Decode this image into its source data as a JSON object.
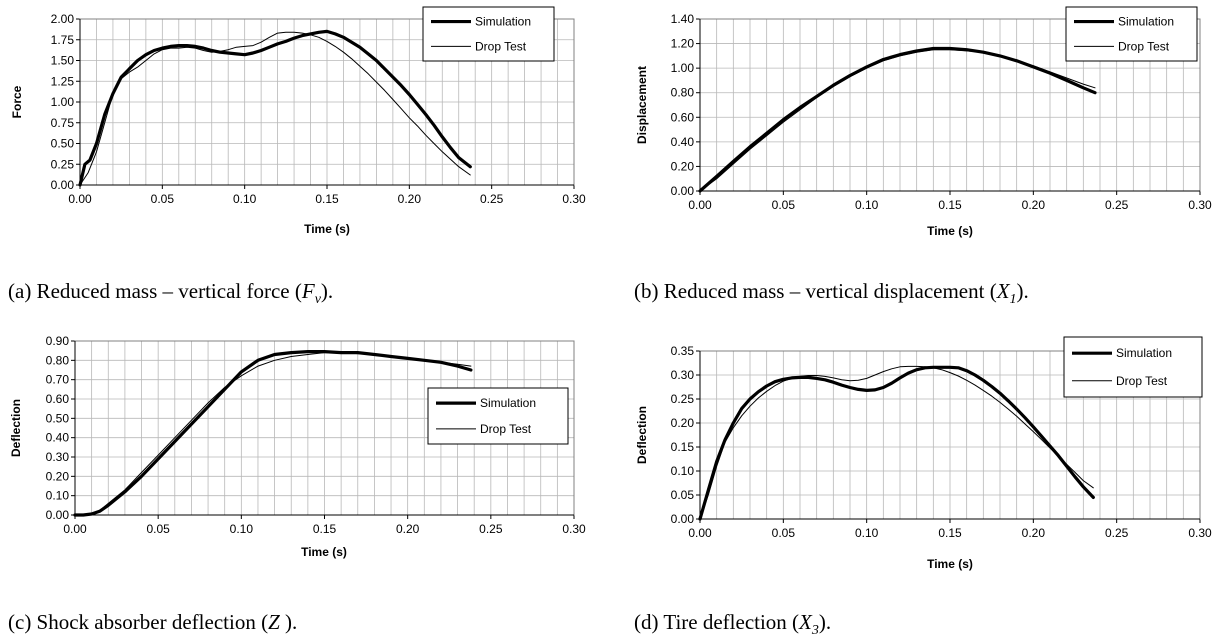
{
  "chart_data": [
    {
      "type": "line",
      "caption": {
        "prefix": "(a) Reduced mass – vertical force (",
        "symbol": "F",
        "sub": "v",
        "suffix": ")."
      },
      "xlabel": "Time (s)",
      "ylabel": "Force",
      "xlim": [
        0,
        0.3
      ],
      "ylim": [
        0,
        2.0
      ],
      "ystep": 0.25,
      "ydecimals": 2,
      "xticks": [
        "0.00",
        "0.05",
        "0.10",
        "0.15",
        "0.20",
        "0.25",
        "0.30"
      ],
      "grid": true,
      "legend_position": "top-right",
      "series": [
        {
          "name": "Simulation",
          "style": "thick",
          "x": [
            0,
            0.003,
            0.006,
            0.01,
            0.015,
            0.02,
            0.025,
            0.03,
            0.035,
            0.04,
            0.045,
            0.05,
            0.055,
            0.06,
            0.065,
            0.07,
            0.075,
            0.08,
            0.085,
            0.09,
            0.095,
            0.1,
            0.105,
            0.11,
            0.115,
            0.12,
            0.125,
            0.13,
            0.135,
            0.14,
            0.145,
            0.15,
            0.155,
            0.16,
            0.165,
            0.17,
            0.175,
            0.18,
            0.185,
            0.19,
            0.195,
            0.2,
            0.205,
            0.21,
            0.215,
            0.22,
            0.225,
            0.23,
            0.237
          ],
          "y": [
            0,
            0.25,
            0.3,
            0.5,
            0.85,
            1.1,
            1.3,
            1.4,
            1.5,
            1.57,
            1.62,
            1.65,
            1.67,
            1.68,
            1.68,
            1.67,
            1.65,
            1.62,
            1.6,
            1.59,
            1.58,
            1.57,
            1.59,
            1.62,
            1.66,
            1.7,
            1.73,
            1.77,
            1.8,
            1.82,
            1.84,
            1.85,
            1.82,
            1.78,
            1.72,
            1.66,
            1.58,
            1.5,
            1.4,
            1.3,
            1.2,
            1.09,
            0.97,
            0.85,
            0.72,
            0.58,
            0.45,
            0.33,
            0.22
          ]
        },
        {
          "name": "Drop Test",
          "style": "thin",
          "x": [
            0,
            0.005,
            0.01,
            0.015,
            0.02,
            0.025,
            0.03,
            0.035,
            0.04,
            0.045,
            0.05,
            0.055,
            0.06,
            0.065,
            0.07,
            0.075,
            0.08,
            0.085,
            0.09,
            0.095,
            0.1,
            0.105,
            0.11,
            0.115,
            0.12,
            0.125,
            0.13,
            0.135,
            0.14,
            0.145,
            0.15,
            0.155,
            0.16,
            0.165,
            0.17,
            0.175,
            0.18,
            0.185,
            0.19,
            0.195,
            0.2,
            0.205,
            0.21,
            0.215,
            0.22,
            0.225,
            0.23,
            0.237
          ],
          "y": [
            0,
            0.15,
            0.4,
            0.75,
            1.1,
            1.28,
            1.36,
            1.42,
            1.5,
            1.58,
            1.63,
            1.65,
            1.65,
            1.66,
            1.65,
            1.62,
            1.6,
            1.61,
            1.63,
            1.66,
            1.67,
            1.68,
            1.72,
            1.78,
            1.83,
            1.84,
            1.84,
            1.83,
            1.81,
            1.78,
            1.73,
            1.67,
            1.6,
            1.52,
            1.43,
            1.34,
            1.24,
            1.14,
            1.03,
            0.92,
            0.81,
            0.71,
            0.6,
            0.5,
            0.4,
            0.31,
            0.22,
            0.12
          ]
        }
      ]
    },
    {
      "type": "line",
      "caption": {
        "prefix": "(b) Reduced mass – vertical displacement (",
        "symbol": "X",
        "sub": "1",
        "suffix": ")."
      },
      "xlabel": "Time (s)",
      "ylabel": "Displacement",
      "xlim": [
        0,
        0.3
      ],
      "ylim": [
        0,
        1.4
      ],
      "ystep": 0.2,
      "ydecimals": 2,
      "xticks": [
        "0.00",
        "0.05",
        "0.10",
        "0.15",
        "0.20",
        "0.25",
        "0.30"
      ],
      "grid": true,
      "legend_position": "top-right",
      "series": [
        {
          "name": "Simulation",
          "style": "thick",
          "x": [
            0,
            0.01,
            0.02,
            0.03,
            0.04,
            0.05,
            0.06,
            0.07,
            0.08,
            0.09,
            0.1,
            0.11,
            0.12,
            0.13,
            0.14,
            0.15,
            0.16,
            0.17,
            0.18,
            0.19,
            0.2,
            0.21,
            0.22,
            0.23,
            0.237
          ],
          "y": [
            0,
            0.12,
            0.24,
            0.36,
            0.47,
            0.58,
            0.68,
            0.77,
            0.86,
            0.94,
            1.01,
            1.07,
            1.11,
            1.14,
            1.16,
            1.16,
            1.15,
            1.13,
            1.1,
            1.06,
            1.01,
            0.96,
            0.9,
            0.84,
            0.8
          ]
        },
        {
          "name": "Drop Test",
          "style": "thin",
          "x": [
            0,
            0.01,
            0.02,
            0.03,
            0.04,
            0.05,
            0.06,
            0.07,
            0.08,
            0.09,
            0.1,
            0.11,
            0.12,
            0.13,
            0.14,
            0.15,
            0.16,
            0.17,
            0.18,
            0.19,
            0.2,
            0.21,
            0.22,
            0.23,
            0.237
          ],
          "y": [
            0,
            0.1,
            0.22,
            0.34,
            0.45,
            0.56,
            0.66,
            0.76,
            0.85,
            0.93,
            1.0,
            1.06,
            1.1,
            1.13,
            1.15,
            1.15,
            1.14,
            1.13,
            1.1,
            1.06,
            1.02,
            0.97,
            0.92,
            0.87,
            0.84
          ]
        }
      ]
    },
    {
      "type": "line",
      "caption": {
        "prefix": "(c) Shock absorber deflection (",
        "symbol": "Z",
        "sub": "",
        "suffix": " )."
      },
      "xlabel": "Time (s)",
      "ylabel": "Deflection",
      "xlim": [
        0,
        0.3
      ],
      "ylim": [
        0,
        0.9
      ],
      "ystep": 0.1,
      "ydecimals": 2,
      "xticks": [
        "0.00",
        "0.05",
        "0.10",
        "0.15",
        "0.20",
        "0.25",
        "0.30"
      ],
      "grid": true,
      "legend_position": "right",
      "series": [
        {
          "name": "Simulation",
          "style": "thick",
          "x": [
            0,
            0.005,
            0.01,
            0.015,
            0.02,
            0.03,
            0.04,
            0.05,
            0.06,
            0.07,
            0.08,
            0.09,
            0.1,
            0.11,
            0.12,
            0.13,
            0.14,
            0.15,
            0.16,
            0.17,
            0.18,
            0.19,
            0.2,
            0.21,
            0.22,
            0.23,
            0.238
          ],
          "y": [
            0,
            0.0,
            0.005,
            0.02,
            0.05,
            0.12,
            0.2,
            0.29,
            0.38,
            0.47,
            0.56,
            0.65,
            0.74,
            0.8,
            0.83,
            0.84,
            0.845,
            0.845,
            0.84,
            0.84,
            0.83,
            0.82,
            0.81,
            0.8,
            0.79,
            0.77,
            0.75
          ]
        },
        {
          "name": "Drop Test",
          "style": "thin",
          "x": [
            0,
            0.005,
            0.01,
            0.015,
            0.02,
            0.03,
            0.04,
            0.05,
            0.06,
            0.07,
            0.08,
            0.09,
            0.1,
            0.11,
            0.12,
            0.13,
            0.14,
            0.15,
            0.16,
            0.17,
            0.18,
            0.19,
            0.2,
            0.21,
            0.22,
            0.23,
            0.238
          ],
          "y": [
            0,
            0.0,
            0.005,
            0.025,
            0.06,
            0.13,
            0.22,
            0.31,
            0.4,
            0.49,
            0.58,
            0.66,
            0.72,
            0.77,
            0.8,
            0.82,
            0.83,
            0.84,
            0.84,
            0.835,
            0.83,
            0.82,
            0.81,
            0.8,
            0.79,
            0.78,
            0.77
          ]
        }
      ]
    },
    {
      "type": "line",
      "caption": {
        "prefix": "(d) Tire deflection (",
        "symbol": "X",
        "sub": "3",
        "suffix": ")."
      },
      "xlabel": "Time (s)",
      "ylabel": "Deflection",
      "xlim": [
        0,
        0.3
      ],
      "ylim": [
        0,
        0.35
      ],
      "ystep": 0.05,
      "ydecimals": 2,
      "xticks": [
        "0.00",
        "0.05",
        "0.10",
        "0.15",
        "0.20",
        "0.25",
        "0.30"
      ],
      "grid": true,
      "legend_position": "top-right",
      "series": [
        {
          "name": "Simulation",
          "style": "thick",
          "x": [
            0,
            0.005,
            0.01,
            0.015,
            0.02,
            0.025,
            0.03,
            0.035,
            0.04,
            0.045,
            0.05,
            0.055,
            0.06,
            0.065,
            0.07,
            0.075,
            0.08,
            0.085,
            0.09,
            0.095,
            0.1,
            0.105,
            0.11,
            0.115,
            0.12,
            0.125,
            0.13,
            0.135,
            0.14,
            0.145,
            0.15,
            0.155,
            0.16,
            0.165,
            0.17,
            0.175,
            0.18,
            0.185,
            0.19,
            0.195,
            0.2,
            0.205,
            0.21,
            0.215,
            0.22,
            0.225,
            0.23,
            0.236
          ],
          "y": [
            0,
            0.06,
            0.12,
            0.165,
            0.2,
            0.23,
            0.25,
            0.265,
            0.277,
            0.286,
            0.291,
            0.294,
            0.295,
            0.295,
            0.293,
            0.29,
            0.285,
            0.279,
            0.274,
            0.27,
            0.268,
            0.269,
            0.274,
            0.283,
            0.294,
            0.304,
            0.311,
            0.315,
            0.316,
            0.316,
            0.316,
            0.315,
            0.309,
            0.3,
            0.289,
            0.276,
            0.262,
            0.246,
            0.229,
            0.211,
            0.192,
            0.172,
            0.152,
            0.132,
            0.11,
            0.088,
            0.067,
            0.045
          ]
        },
        {
          "name": "Drop Test",
          "style": "thin",
          "x": [
            0,
            0.005,
            0.01,
            0.015,
            0.02,
            0.025,
            0.03,
            0.035,
            0.04,
            0.045,
            0.05,
            0.055,
            0.06,
            0.065,
            0.07,
            0.075,
            0.08,
            0.085,
            0.09,
            0.095,
            0.1,
            0.105,
            0.11,
            0.115,
            0.12,
            0.125,
            0.13,
            0.135,
            0.14,
            0.145,
            0.15,
            0.155,
            0.16,
            0.165,
            0.17,
            0.175,
            0.18,
            0.185,
            0.19,
            0.195,
            0.2,
            0.205,
            0.21,
            0.215,
            0.22,
            0.225,
            0.23,
            0.236
          ],
          "y": [
            0,
            0.05,
            0.11,
            0.16,
            0.19,
            0.215,
            0.235,
            0.252,
            0.266,
            0.278,
            0.287,
            0.293,
            0.297,
            0.299,
            0.299,
            0.297,
            0.294,
            0.29,
            0.288,
            0.289,
            0.293,
            0.3,
            0.307,
            0.313,
            0.317,
            0.318,
            0.318,
            0.317,
            0.315,
            0.311,
            0.305,
            0.298,
            0.289,
            0.279,
            0.268,
            0.256,
            0.243,
            0.229,
            0.214,
            0.198,
            0.182,
            0.165,
            0.148,
            0.131,
            0.114,
            0.097,
            0.08,
            0.065
          ]
        }
      ]
    }
  ]
}
